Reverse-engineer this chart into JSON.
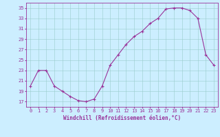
{
  "x": [
    0,
    1,
    2,
    3,
    4,
    5,
    6,
    7,
    8,
    9,
    10,
    11,
    12,
    13,
    14,
    15,
    16,
    17,
    18,
    19,
    20,
    21,
    22,
    23
  ],
  "y": [
    20,
    23,
    23,
    20,
    19,
    18,
    17.2,
    17,
    17.5,
    20,
    24,
    26,
    28,
    29.5,
    30.5,
    32,
    33,
    34.8,
    35,
    35,
    34.5,
    33,
    26,
    24
  ],
  "xlabel": "Windchill (Refroidissement éolien,°C)",
  "ylim": [
    16,
    36
  ],
  "xlim": [
    -0.5,
    23.5
  ],
  "yticks": [
    17,
    19,
    21,
    23,
    25,
    27,
    29,
    31,
    33,
    35
  ],
  "xticks": [
    0,
    1,
    2,
    3,
    4,
    5,
    6,
    7,
    8,
    9,
    10,
    11,
    12,
    13,
    14,
    15,
    16,
    17,
    18,
    19,
    20,
    21,
    22,
    23
  ],
  "line_color": "#993399",
  "marker": "+",
  "bg_color": "#cceeff",
  "grid_color": "#99cccc",
  "font_color": "#993399",
  "font_family": "monospace",
  "tick_fontsize": 5,
  "xlabel_fontsize": 5.5,
  "linewidth": 0.8,
  "markersize": 3,
  "markeredgewidth": 0.8
}
